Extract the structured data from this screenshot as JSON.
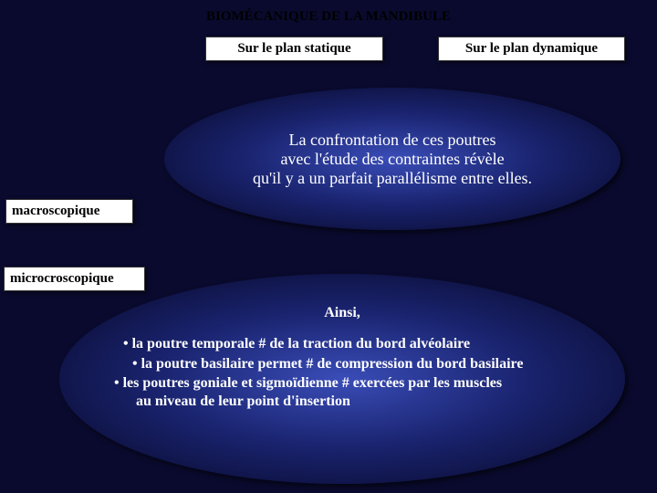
{
  "title": "BIOMÉCANIQUE DE LA MANDIBULE",
  "headers": {
    "static": "Sur le plan statique",
    "dynamic": "Sur le plan dynamique"
  },
  "side": {
    "macro": "macroscopique",
    "micro": "microcroscopique"
  },
  "ellipse1": {
    "line1": "La confrontation de ces poutres",
    "line2": "avec l'étude des contraintes révèle",
    "line3": "qu'il y a un parfait parallélisme entre elles."
  },
  "ellipse2": {
    "lead": "Ainsi,",
    "b1": "la poutre temporale # de la traction du bord alvéolaire",
    "b2": "la poutre basilaire permet # de compression du bord basilaire",
    "b3": "les poutres goniale et sigmoïdienne # exercées par les muscles",
    "b3cont": "au niveau de leur point d'insertion"
  },
  "colors": {
    "background": "#0a0a2e",
    "box_bg": "#ffffff",
    "text_dark": "#000000",
    "text_light": "#ffffff",
    "ellipse_center": "#3a4db8",
    "ellipse_mid": "#1a2470",
    "ellipse_edge": "#050520"
  }
}
